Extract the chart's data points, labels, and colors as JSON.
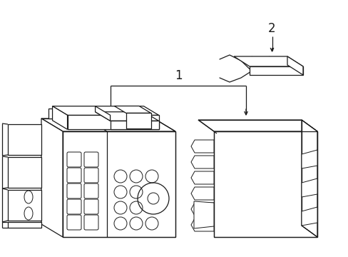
{
  "background_color": "#ffffff",
  "line_color": "#1a1a1a",
  "label1": "1",
  "label2": "2"
}
